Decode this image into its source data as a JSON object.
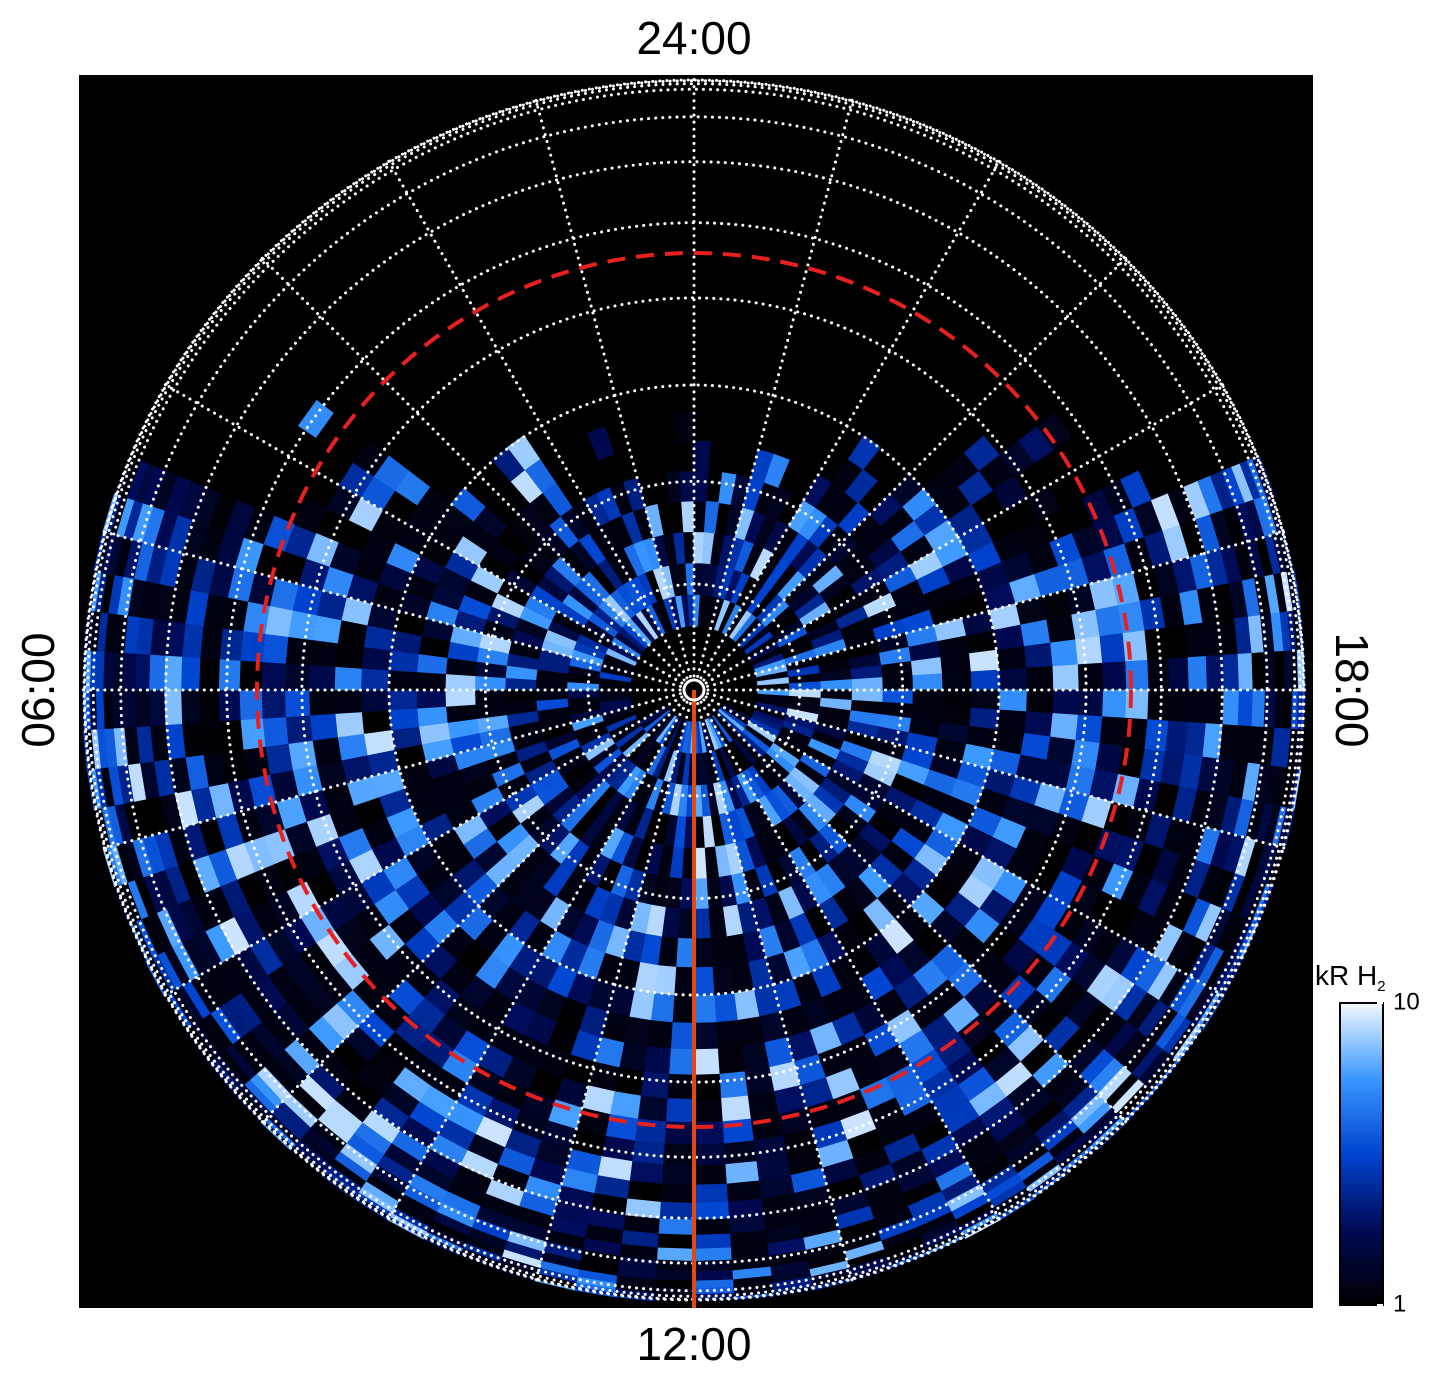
{
  "map": {
    "local_time_labels": {
      "top": "24:00",
      "left": "06:00",
      "bottom": "12:00",
      "right": "18:00"
    }
  },
  "colorbar": {
    "label": "kR H",
    "label_subscript": "2",
    "range": [
      1,
      10
    ],
    "ticks": [
      1,
      10
    ],
    "log": true,
    "colors": [
      "#000000",
      "#000a55",
      "#0044d0",
      "#3a98ff",
      "#f2f8ff"
    ]
  }
}
